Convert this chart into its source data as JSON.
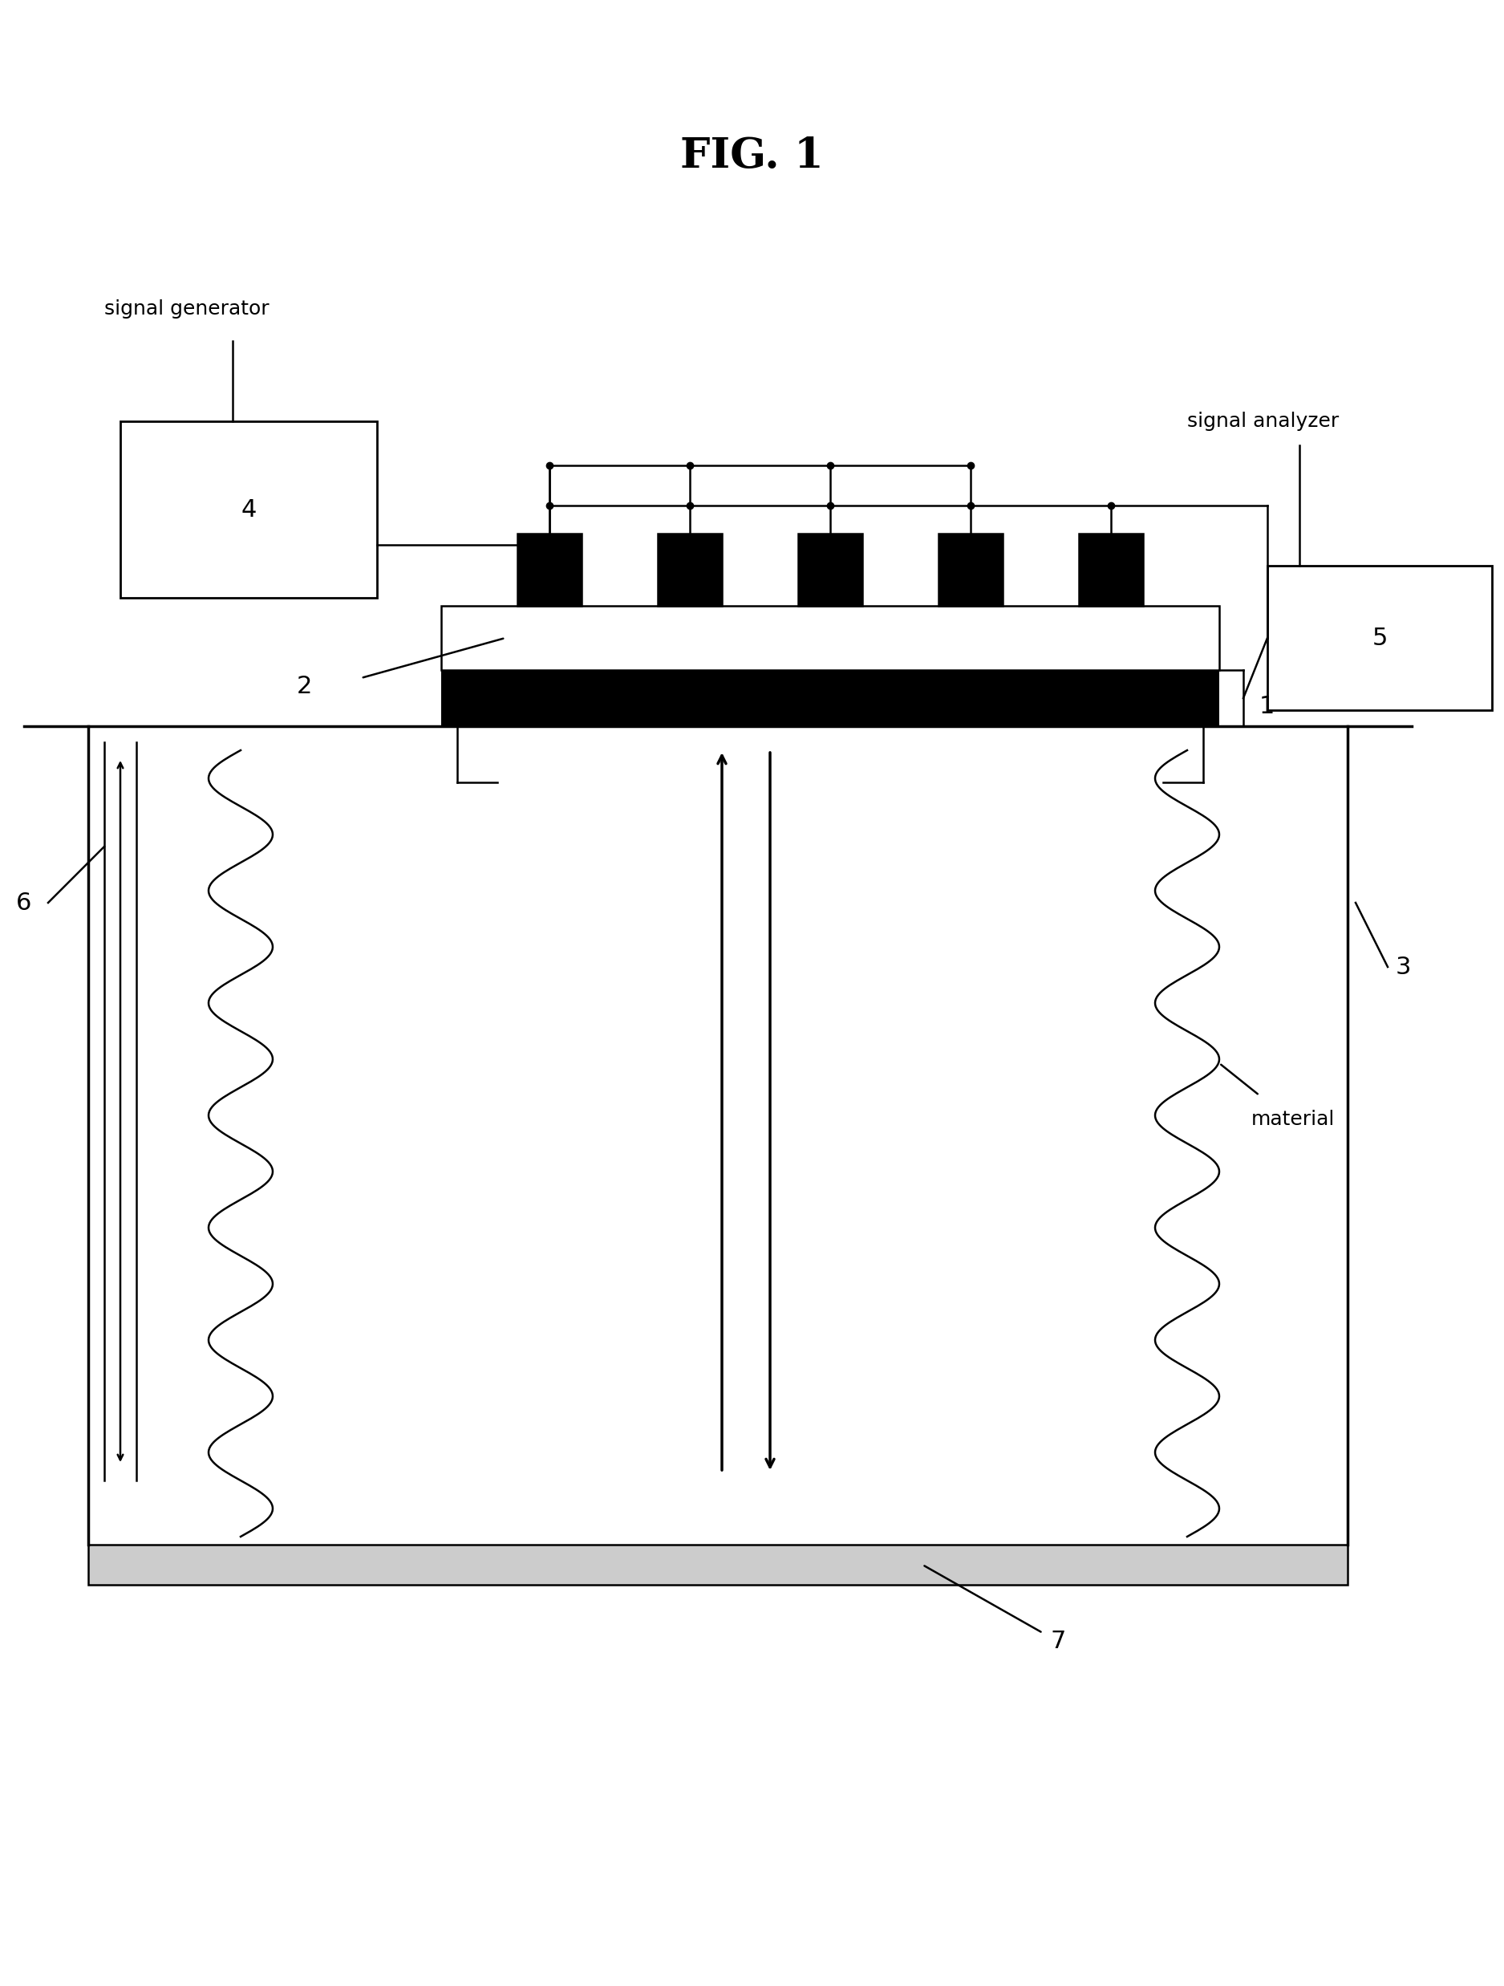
{
  "title": "FIG. 1",
  "bg_color": "#ffffff",
  "fig_width": 18.75,
  "fig_height": 24.75,
  "labels": {
    "signal_generator": "signal generator",
    "signal_analyzer": "signal analyzer",
    "num1": "1",
    "num2": "2",
    "num3": "3",
    "num4": "4",
    "num5": "5",
    "num6": "6",
    "num7": "7",
    "material": "material"
  }
}
